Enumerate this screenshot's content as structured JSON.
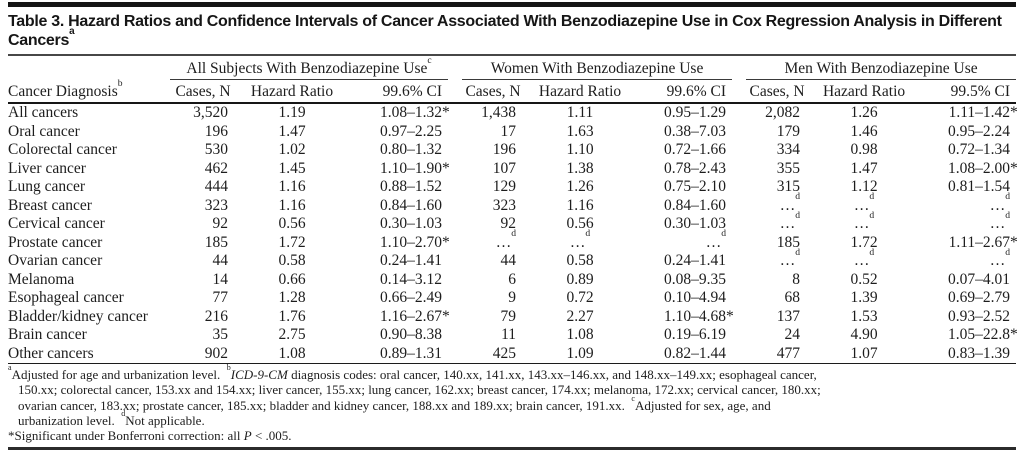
{
  "title": "Table 3. Hazard Ratios and Confidence Intervals of Cancer Associated With Benzodiazepine Use in Cox Regression Analysis in Different Cancers^a",
  "table": {
    "row_header": "Cancer Diagnosis^b",
    "groups": [
      {
        "label": "All Subjects With Benzodiazepine Use^c"
      },
      {
        "label": "Women With Benzodiazepine Use"
      },
      {
        "label": "Men With Benzodiazepine Use"
      }
    ],
    "subheaders": [
      [
        "Cases, N",
        "Hazard Ratio",
        "99.6% CI"
      ],
      [
        "Cases, N",
        "Hazard Ratio",
        "99.6% CI"
      ],
      [
        "Cases, N",
        "Hazard Ratio",
        "99.5% CI"
      ]
    ],
    "rows": [
      {
        "diagnosis": "All cancers",
        "cells": [
          "3,520",
          "1.19",
          "1.08–1.32*",
          "1,438",
          "1.11",
          "0.95–1.29",
          "2,082",
          "1.26",
          "1.11–1.42*"
        ]
      },
      {
        "diagnosis": "Oral cancer",
        "cells": [
          "196",
          "1.47",
          "0.97–2.25",
          "17",
          "1.63",
          "0.38–7.03",
          "179",
          "1.46",
          "0.95–2.24"
        ]
      },
      {
        "diagnosis": "Colorectal cancer",
        "cells": [
          "530",
          "1.02",
          "0.80–1.32",
          "196",
          "1.10",
          "0.72–1.66",
          "334",
          "0.98",
          "0.72–1.34"
        ]
      },
      {
        "diagnosis": "Liver cancer",
        "cells": [
          "462",
          "1.45",
          "1.10–1.90*",
          "107",
          "1.38",
          "0.78–2.43",
          "355",
          "1.47",
          "1.08–2.00*"
        ]
      },
      {
        "diagnosis": "Lung cancer",
        "cells": [
          "444",
          "1.16",
          "0.88–1.52",
          "129",
          "1.26",
          "0.75–2.10",
          "315",
          "1.12",
          "0.81–1.54"
        ]
      },
      {
        "diagnosis": "Breast cancer",
        "cells": [
          "323",
          "1.16",
          "0.84–1.60",
          "323",
          "1.16",
          "0.84–1.60",
          "…^d",
          "…^d",
          "…^d"
        ]
      },
      {
        "diagnosis": "Cervical cancer",
        "cells": [
          "92",
          "0.56",
          "0.30–1.03",
          "92",
          "0.56",
          "0.30–1.03",
          "…^d",
          "…^d",
          "…^d"
        ]
      },
      {
        "diagnosis": "Prostate cancer",
        "cells": [
          "185",
          "1.72",
          "1.10–2.70*",
          "…^d",
          "…^d",
          "…^d",
          "185",
          "1.72",
          "1.11–2.67*"
        ]
      },
      {
        "diagnosis": "Ovarian cancer",
        "cells": [
          "44",
          "0.58",
          "0.24–1.41",
          "44",
          "0.58",
          "0.24–1.41",
          "…^d",
          "…^d",
          "…^d"
        ]
      },
      {
        "diagnosis": "Melanoma",
        "cells": [
          "14",
          "0.66",
          "0.14–3.12",
          "6",
          "0.89",
          "0.08–9.35",
          "8",
          "0.52",
          "0.07–4.01"
        ]
      },
      {
        "diagnosis": "Esophageal cancer",
        "cells": [
          "77",
          "1.28",
          "0.66–2.49",
          "9",
          "0.72",
          "0.10–4.94",
          "68",
          "1.39",
          "0.69–2.79"
        ]
      },
      {
        "diagnosis": "Bladder/kidney cancer",
        "cells": [
          "216",
          "1.76",
          "1.16–2.67*",
          "79",
          "2.27",
          "1.10–4.68*",
          "137",
          "1.53",
          "0.93–2.52"
        ]
      },
      {
        "diagnosis": "Brain cancer",
        "cells": [
          "35",
          "2.75",
          "0.90–8.38",
          "11",
          "1.08",
          "0.19–6.19",
          "24",
          "4.90",
          "1.05–22.8*"
        ]
      },
      {
        "diagnosis": "Other cancers",
        "cells": [
          "902",
          "1.08",
          "0.89–1.31",
          "425",
          "1.09",
          "0.82–1.44",
          "477",
          "1.07",
          "0.83–1.39"
        ]
      }
    ]
  },
  "footnotes": {
    "lines": [
      {
        "text": "^aAdjusted for age and urbanization level.  ^b~ICD-9-CM~ diagnosis codes: oral cancer, 140.xx, 141.xx, 143.xx–146.xx, and 148.xx–149.xx; esophageal cancer,",
        "indent": false
      },
      {
        "text": "150.xx; colorectal cancer, 153.xx and 154.xx; liver cancer, 155.xx; lung cancer, 162.xx; breast cancer, 174.xx; melanoma, 172.xx; cervical cancer, 180.xx;",
        "indent": true
      },
      {
        "text": "ovarian cancer, 183.xx; prostate cancer, 185.xx; bladder and kidney cancer, 188.xx and 189.xx; brain cancer, 191.xx.  ^cAdjusted for sex, age, and",
        "indent": true
      },
      {
        "text": "urbanization level.  ^dNot applicable.",
        "indent": true
      },
      {
        "text": "*Significant under Bonferroni correction: all ~P~ < .005.",
        "indent": false
      }
    ]
  }
}
